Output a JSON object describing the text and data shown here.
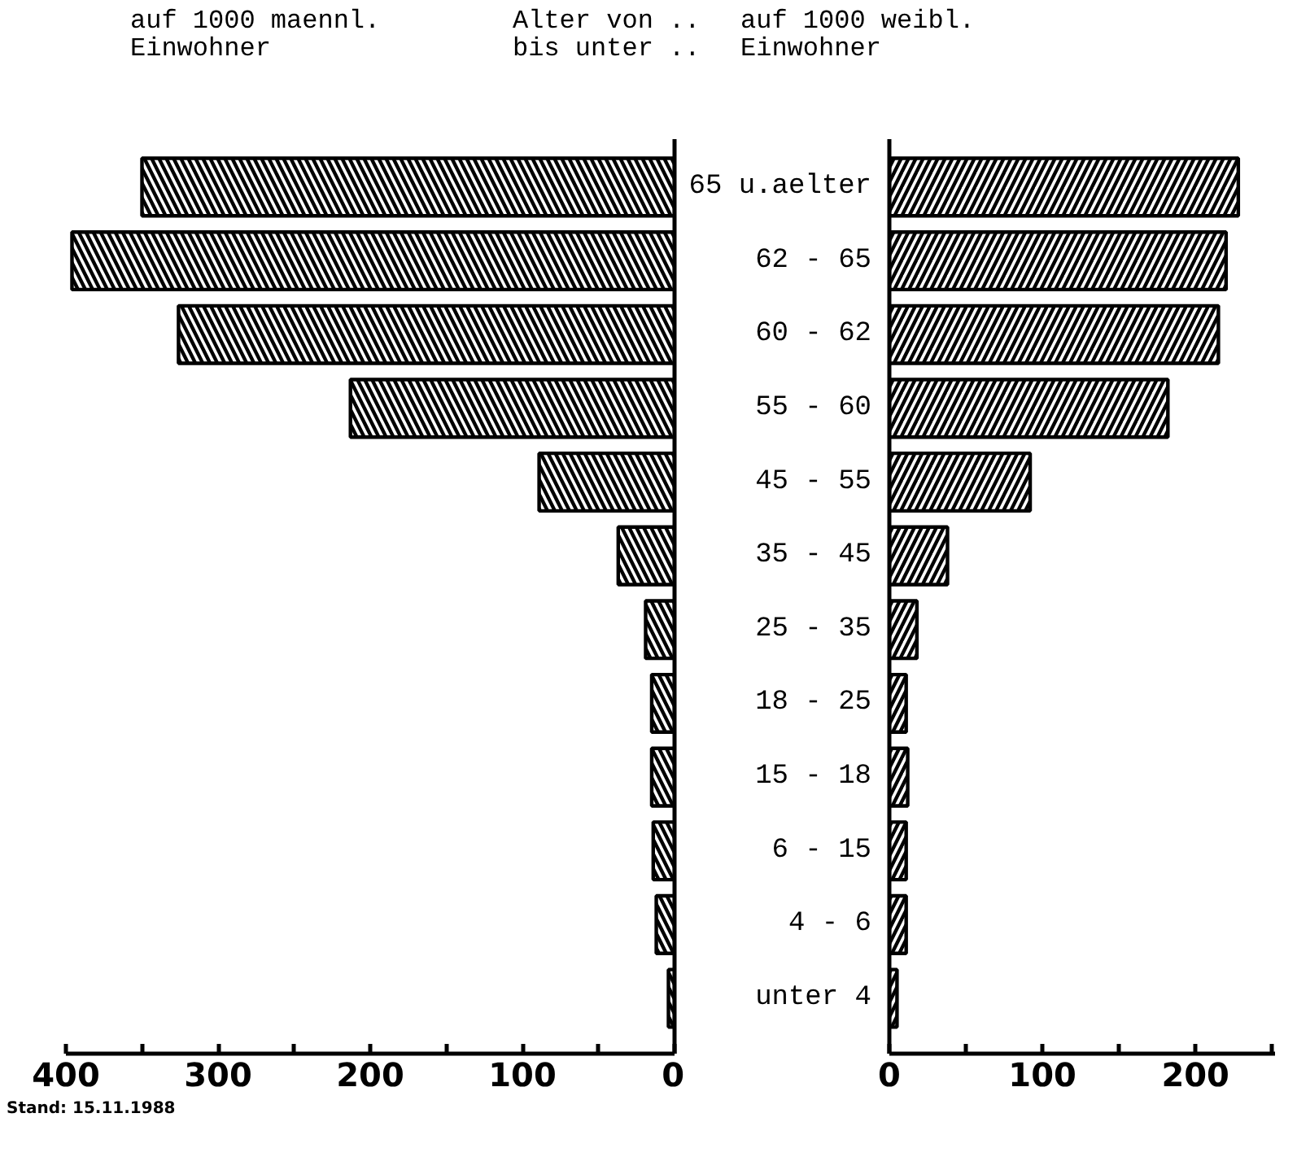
{
  "chart_data": [
    {
      "type": "bar",
      "orientation": "horizontal",
      "title": "auf 1000 maennl.\nEinwohner",
      "categories": [
        null,
        null,
        null,
        null,
        null,
        null,
        null,
        null,
        null,
        null,
        null,
        null
      ],
      "values": [
        350,
        396,
        326,
        213,
        89,
        37,
        19,
        15,
        15,
        14,
        12,
        4
      ],
      "color": "#000000",
      "xlim": [
        400,
        0
      ],
      "xticks": [
        400,
        {
          "value": 350,
          "label": null
        },
        300,
        {
          "value": 250,
          "label": null
        },
        200,
        {
          "value": 150,
          "label": null
        },
        100,
        {
          "value": 50,
          "label": null
        },
        0
      ],
      "grid": false,
      "annotations": [
        "Stand: 15.11.1988"
      ]
    },
    {
      "type": "bar",
      "orientation": "horizontal",
      "title": "auf 1000 weibl.\nEinwohner",
      "ylabel": "Alter von ..\nbis unter ..",
      "categories": [
        "65 u.aelter",
        "62 - 65",
        "60 - 62",
        "55 - 60",
        "45 - 55",
        "35 - 45",
        "25 - 35",
        "18 - 25",
        "15 - 18",
        "6 - 15",
        "4 - 6",
        "unter 4"
      ],
      "values": [
        228,
        220,
        215,
        182,
        92,
        38,
        18,
        11,
        12,
        11,
        11,
        5
      ],
      "color": "#000000",
      "xlim": [
        0,
        252
      ],
      "xticks": [
        0,
        {
          "value": 50,
          "label": null
        },
        100,
        {
          "value": 150,
          "label": null
        },
        200,
        {
          "value": 250,
          "label": null
        }
      ],
      "grid": false
    }
  ]
}
